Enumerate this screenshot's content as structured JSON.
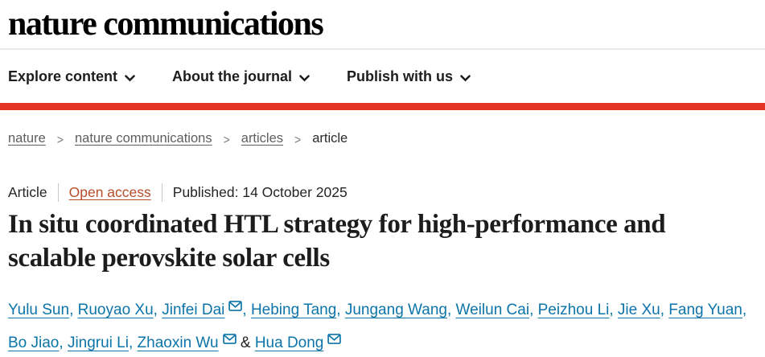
{
  "brand": {
    "logo": "nature communications"
  },
  "nav": {
    "items": [
      {
        "label": "Explore content"
      },
      {
        "label": "About the journal"
      },
      {
        "label": "Publish with us"
      }
    ]
  },
  "breadcrumb": {
    "separator": ">",
    "items": [
      {
        "label": "nature",
        "link": true
      },
      {
        "label": "nature communications",
        "link": true
      },
      {
        "label": "articles",
        "link": true
      },
      {
        "label": "article",
        "link": false
      }
    ]
  },
  "meta": {
    "type": "Article",
    "access": "Open access",
    "published": "Published: 14 October 2025"
  },
  "title": "In situ coordinated HTL strategy for high-performance and scalable perovskite solar cells",
  "authors": {
    "ampersand": "&",
    "list": [
      {
        "name": "Yulu Sun",
        "email": false
      },
      {
        "name": "Ruoyao Xu",
        "email": false
      },
      {
        "name": "Jinfei Dai",
        "email": true
      },
      {
        "name": "Hebing Tang",
        "email": false
      },
      {
        "name": "Jungang Wang",
        "email": false
      },
      {
        "name": "Weilun Cai",
        "email": false
      },
      {
        "name": "Peizhou Li",
        "email": false
      },
      {
        "name": "Jie Xu",
        "email": false
      },
      {
        "name": "Fang Yuan",
        "email": false
      },
      {
        "name": "Bo Jiao",
        "email": false
      },
      {
        "name": "Jingrui Li",
        "email": false
      },
      {
        "name": "Zhaoxin Wu",
        "email": true
      },
      {
        "name": "Hua Dong",
        "email": true
      }
    ]
  },
  "colors": {
    "accent_red": "#e23323",
    "link_blue": "#0c74a8",
    "open_access_rust": "#b74e28",
    "text_dark": "#222222",
    "breadcrumb_gray": "#5e5e5e"
  }
}
